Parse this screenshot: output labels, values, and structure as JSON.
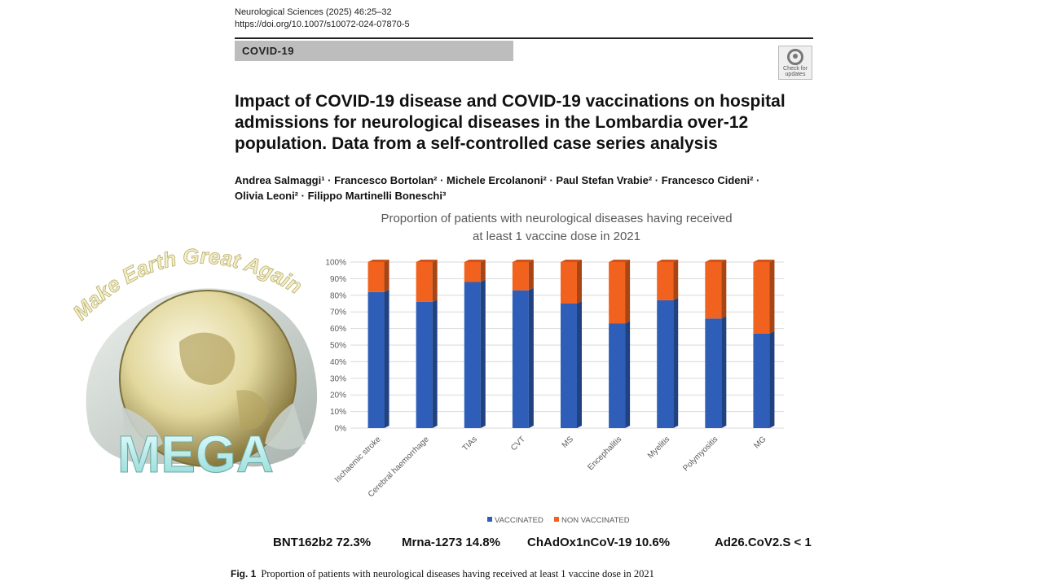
{
  "header": {
    "journal_line": "Neurological Sciences (2025) 46:25–32",
    "doi": "https://doi.org/10.1007/s10072-024-07870-5",
    "section": "COVID-19",
    "check_updates": "Check for updates"
  },
  "paper": {
    "title": "Impact of COVID-19 disease and COVID-19 vaccinations on hospital admissions for neurological diseases in the Lombardia over-12 population. Data from a self-controlled case series analysis",
    "authors_line1": "Andrea Salmaggi¹ · Francesco Bortolan² · Michele Ercolanoni² · Paul Stefan Vrabie² · Francesco Cideni² ·",
    "authors_line2": "Olivia Leoni² · Filippo Martinelli Boneschi³"
  },
  "logo": {
    "arc_text": "Make Earth Great Again",
    "word": "MEGA"
  },
  "chart_data": {
    "type": "bar",
    "stacked": true,
    "title_line1": "Proportion of patients with neurological diseases having received",
    "title_line2": "at least 1 vaccine dose in 2021",
    "categories": [
      "Ischaemic stroke",
      "Cerebral haemorrhage",
      "TIAs",
      "CVT",
      "MS",
      "Encephalitis",
      "Myelitis",
      "Polymyositis",
      "MG"
    ],
    "series": [
      {
        "name": "VACCINATED",
        "color": "#2e5eb8",
        "values": [
          82,
          76,
          88,
          83,
          75,
          63,
          77,
          66,
          57
        ]
      },
      {
        "name": "NON VACCINATED",
        "color": "#f0621e",
        "values": [
          18,
          24,
          12,
          17,
          25,
          37,
          23,
          34,
          43
        ]
      }
    ],
    "ylim": [
      0,
      100
    ],
    "yticks": [
      "0%",
      "10%",
      "20%",
      "30%",
      "40%",
      "50%",
      "60%",
      "70%",
      "80%",
      "90%",
      "100%"
    ],
    "grid": true,
    "legend_position": "bottom"
  },
  "vaccines": [
    {
      "label": "BNT162b2  72.3%"
    },
    {
      "label": "Mrna-1273 14.8%"
    },
    {
      "label": "ChAdOx1nCoV-19  10.6%"
    },
    {
      "label": "Ad26.CoV2.S  < 1"
    }
  ],
  "caption": {
    "label": "Fig. 1",
    "text": "Proportion of patients with neurological diseases having received at least 1 vaccine dose in 2021"
  }
}
